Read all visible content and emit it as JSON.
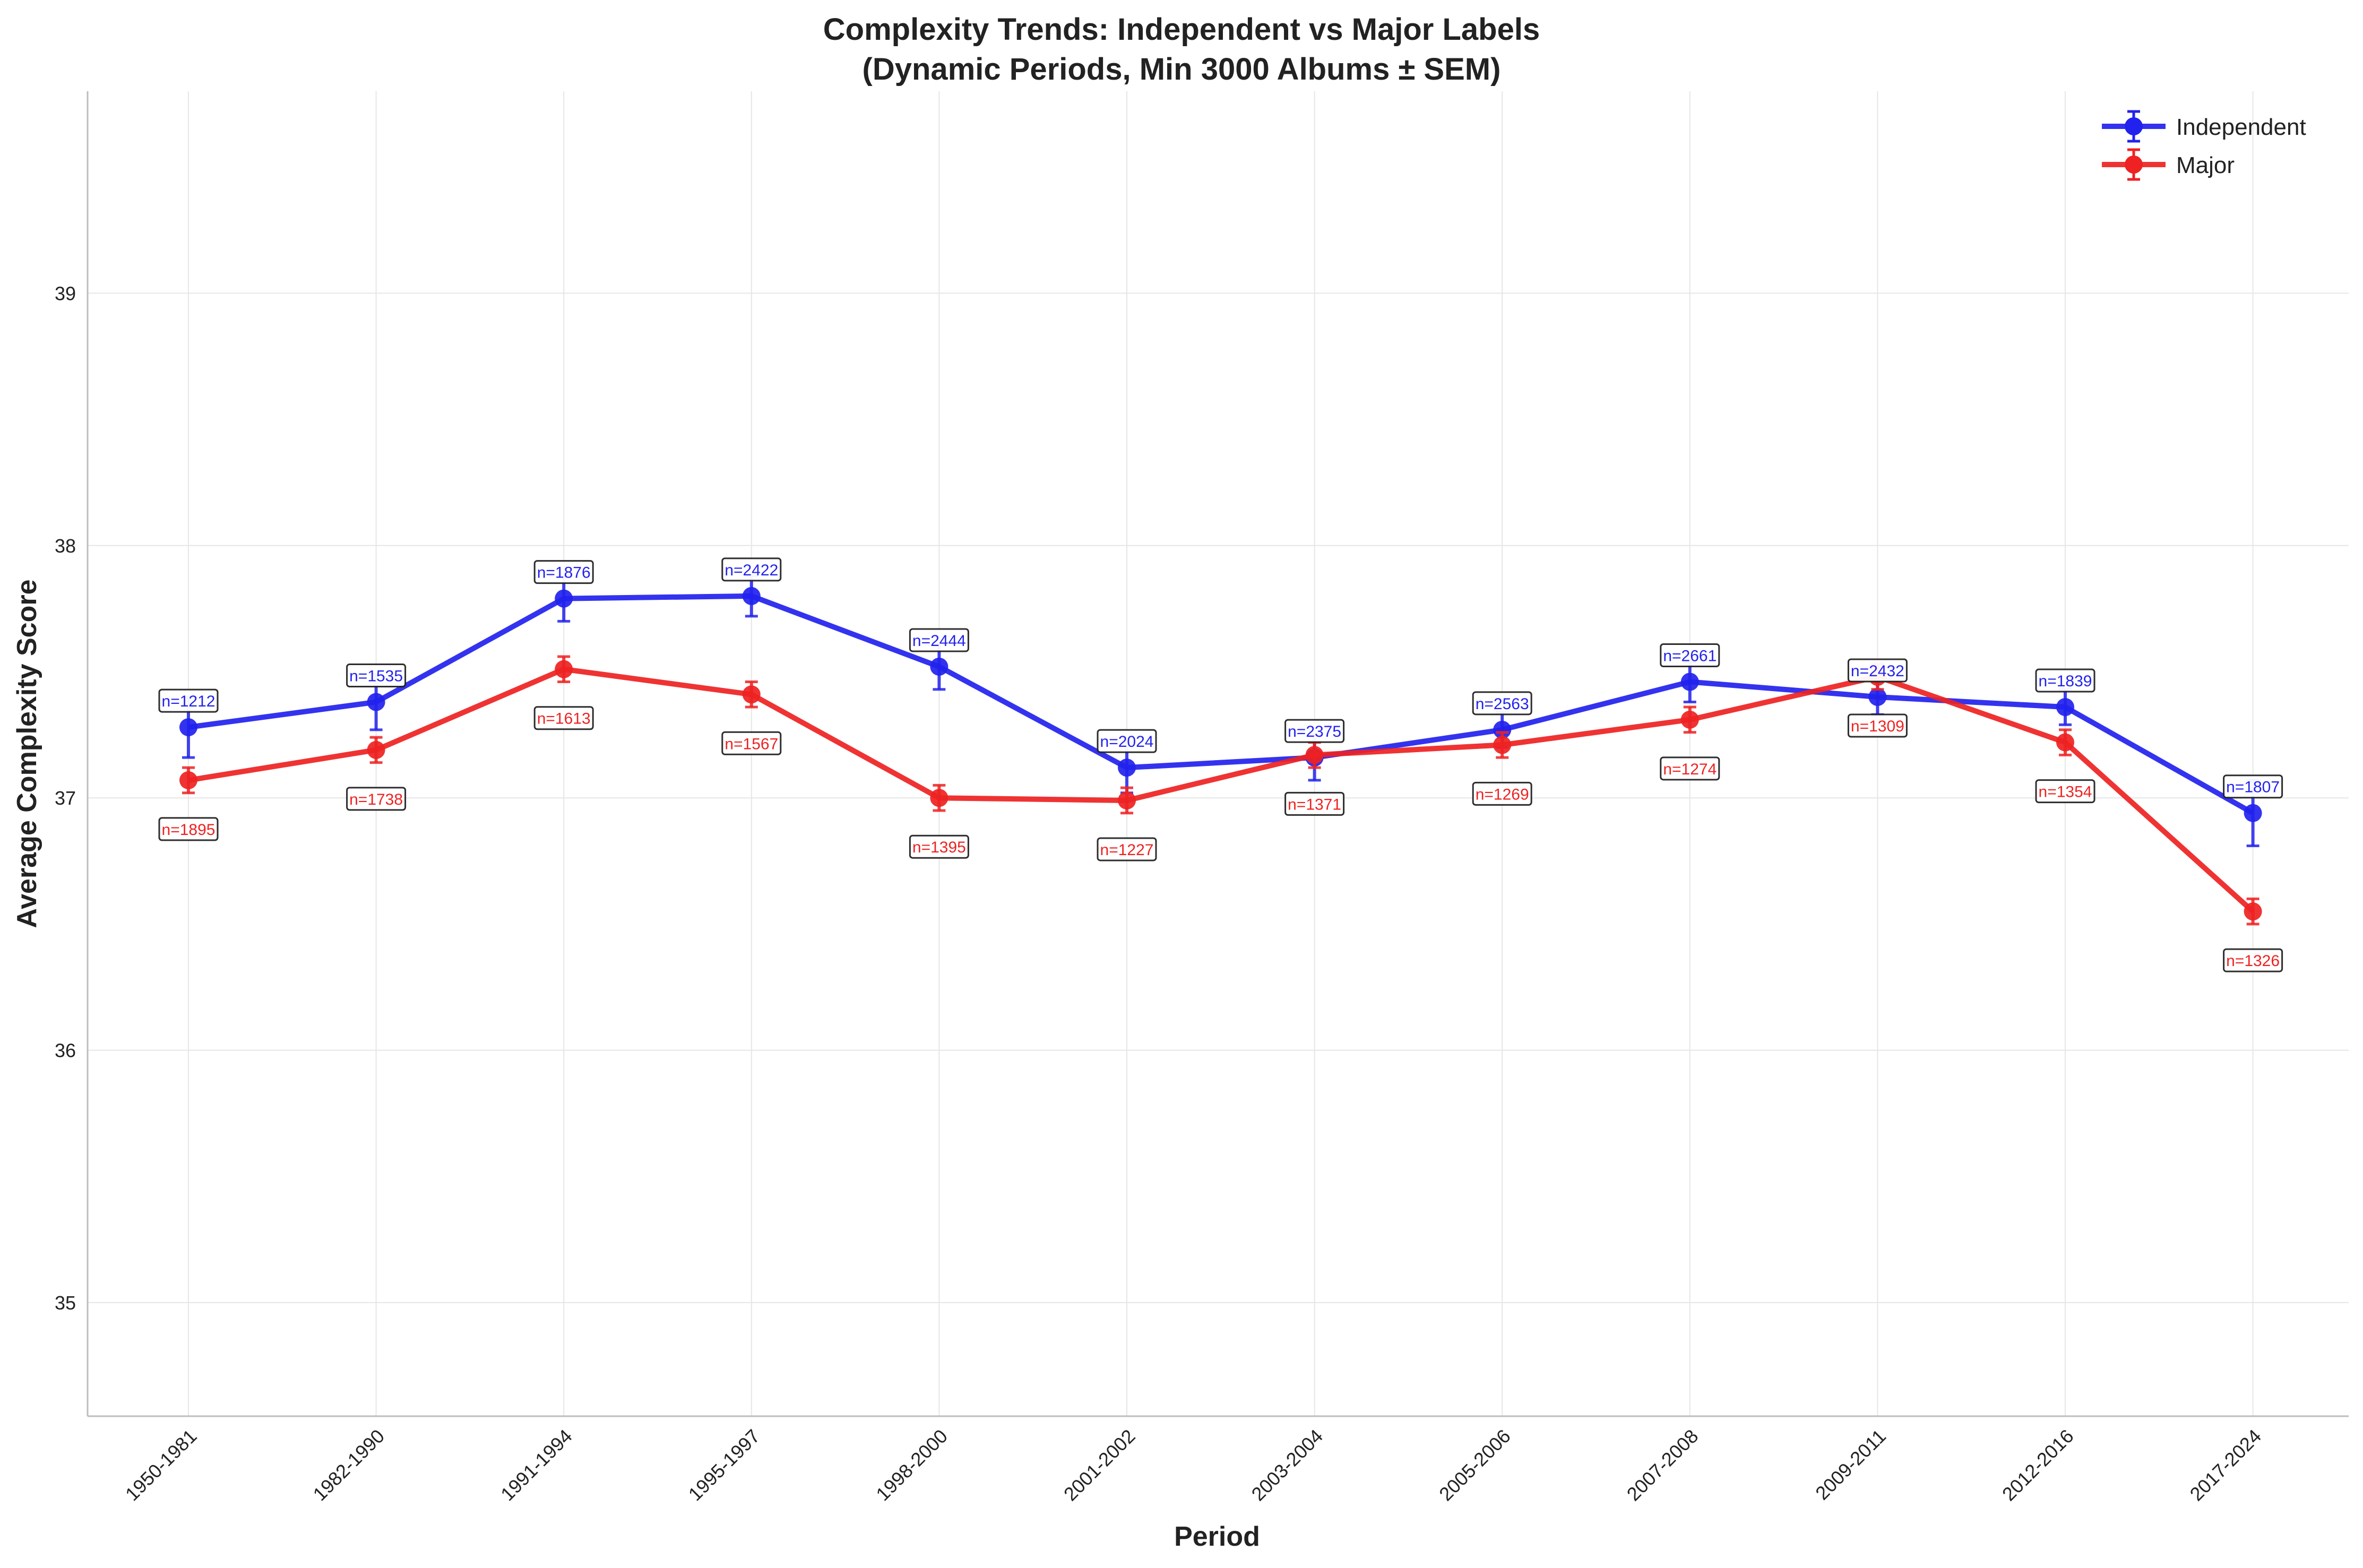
{
  "chart_data": {
    "type": "line",
    "title_line1": "Complexity Trends: Independent vs Major Labels",
    "title_line2": "(Dynamic Periods, Min 3000 Albums ± SEM)",
    "xlabel": "Period",
    "ylabel": "Average Complexity Score",
    "categories": [
      "1950-1981",
      "1982-1990",
      "1991-1994",
      "1995-1997",
      "1998-2000",
      "2001-2002",
      "2003-2004",
      "2005-2006",
      "2007-2008",
      "2009-2011",
      "2012-2016",
      "2017-2024"
    ],
    "ylim": [
      34.55,
      39.8
    ],
    "yticks": [
      35,
      36,
      37,
      38,
      39
    ],
    "grid": true,
    "legend_position": "top-right",
    "series": [
      {
        "name": "Independent",
        "color": "#2222ee",
        "values": [
          37.28,
          37.38,
          37.79,
          37.8,
          37.52,
          37.12,
          37.16,
          37.27,
          37.46,
          37.4,
          37.36,
          36.94
        ],
        "sem": [
          0.12,
          0.11,
          0.09,
          0.08,
          0.09,
          0.1,
          0.09,
          0.07,
          0.08,
          0.07,
          0.07,
          0.13
        ],
        "n_labels": [
          "n=1212",
          "n=1535",
          "n=1876",
          "n=2422",
          "n=2444",
          "n=2024",
          "n=2375",
          "n=2563",
          "n=2661",
          "n=2432",
          "n=1839",
          "n=1807"
        ]
      },
      {
        "name": "Major",
        "color": "#ee2222",
        "values": [
          37.07,
          37.19,
          37.51,
          37.41,
          37.0,
          36.99,
          37.17,
          37.21,
          37.31,
          37.48,
          37.22,
          36.55
        ],
        "sem": [
          0.05,
          0.05,
          0.05,
          0.05,
          0.05,
          0.05,
          0.05,
          0.05,
          0.05,
          0.05,
          0.05,
          0.05
        ],
        "n_labels": [
          "n=1895",
          "n=1738",
          "n=1613",
          "n=1567",
          "n=1395",
          "n=1227",
          "n=1371",
          "n=1269",
          "n=1274",
          "n=1309",
          "n=1354",
          "n=1326"
        ]
      }
    ]
  }
}
